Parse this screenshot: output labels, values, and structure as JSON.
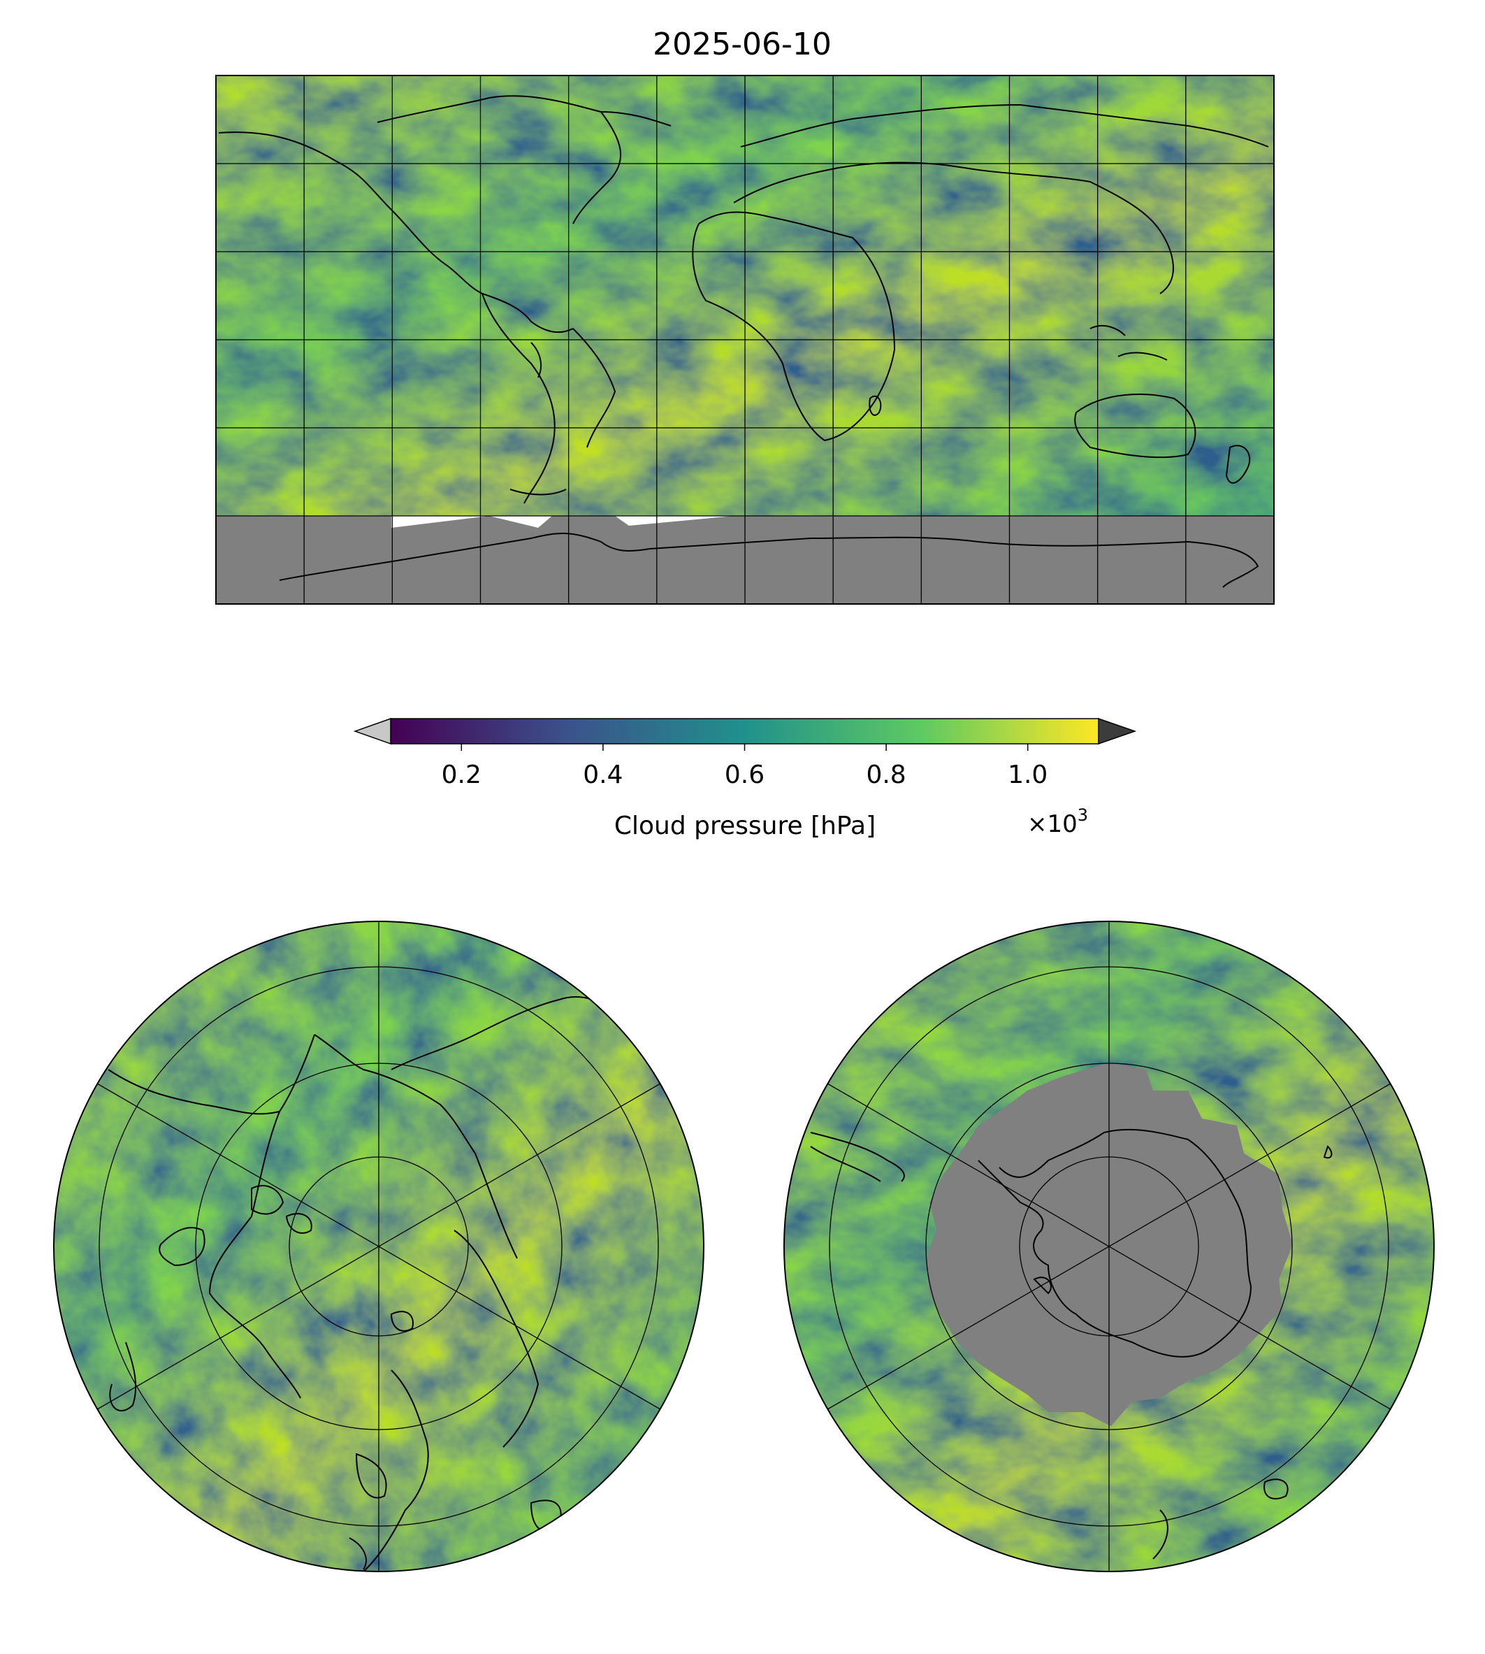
{
  "title": "2025-06-10",
  "variable": "Cloud pressure",
  "colorbar": {
    "label": "Cloud pressure [hPa]",
    "scale_label": "×10",
    "scale_exponent": "3",
    "vmin": 0.1,
    "vmax": 1.1,
    "ticks": [
      "0.2",
      "0.4",
      "0.6",
      "0.8",
      "1.0"
    ],
    "tick_values": [
      0.2,
      0.4,
      0.6,
      0.8,
      1.0
    ],
    "colormap": "viridis",
    "colormap_stops": [
      "#440154",
      "#3b528b",
      "#21918c",
      "#5ec962",
      "#fde725"
    ],
    "extend_under_color": "#c8c8c8",
    "extend_over_color": "#3c3c3c"
  },
  "panels": [
    {
      "name": "global",
      "projection": "Plate Carree",
      "lon_gridlines_deg": [
        -180,
        -150,
        -120,
        -90,
        -60,
        -30,
        0,
        30,
        60,
        90,
        120,
        150,
        180
      ],
      "lat_gridlines_deg": [
        90,
        60,
        30,
        0,
        -30,
        -60,
        -90
      ],
      "no_data_color": "#808080",
      "no_data_region": "Antarctica"
    },
    {
      "name": "north-polar",
      "projection": "North Polar Stereographic",
      "lat_circles_deg": [
        80,
        60,
        40,
        20
      ]
    },
    {
      "name": "south-polar",
      "projection": "South Polar Stereographic",
      "lat_circles_deg": [
        -80,
        -60,
        -40,
        -20
      ],
      "no_data_color": "#808080",
      "no_data_region": "Antarctica"
    }
  ]
}
